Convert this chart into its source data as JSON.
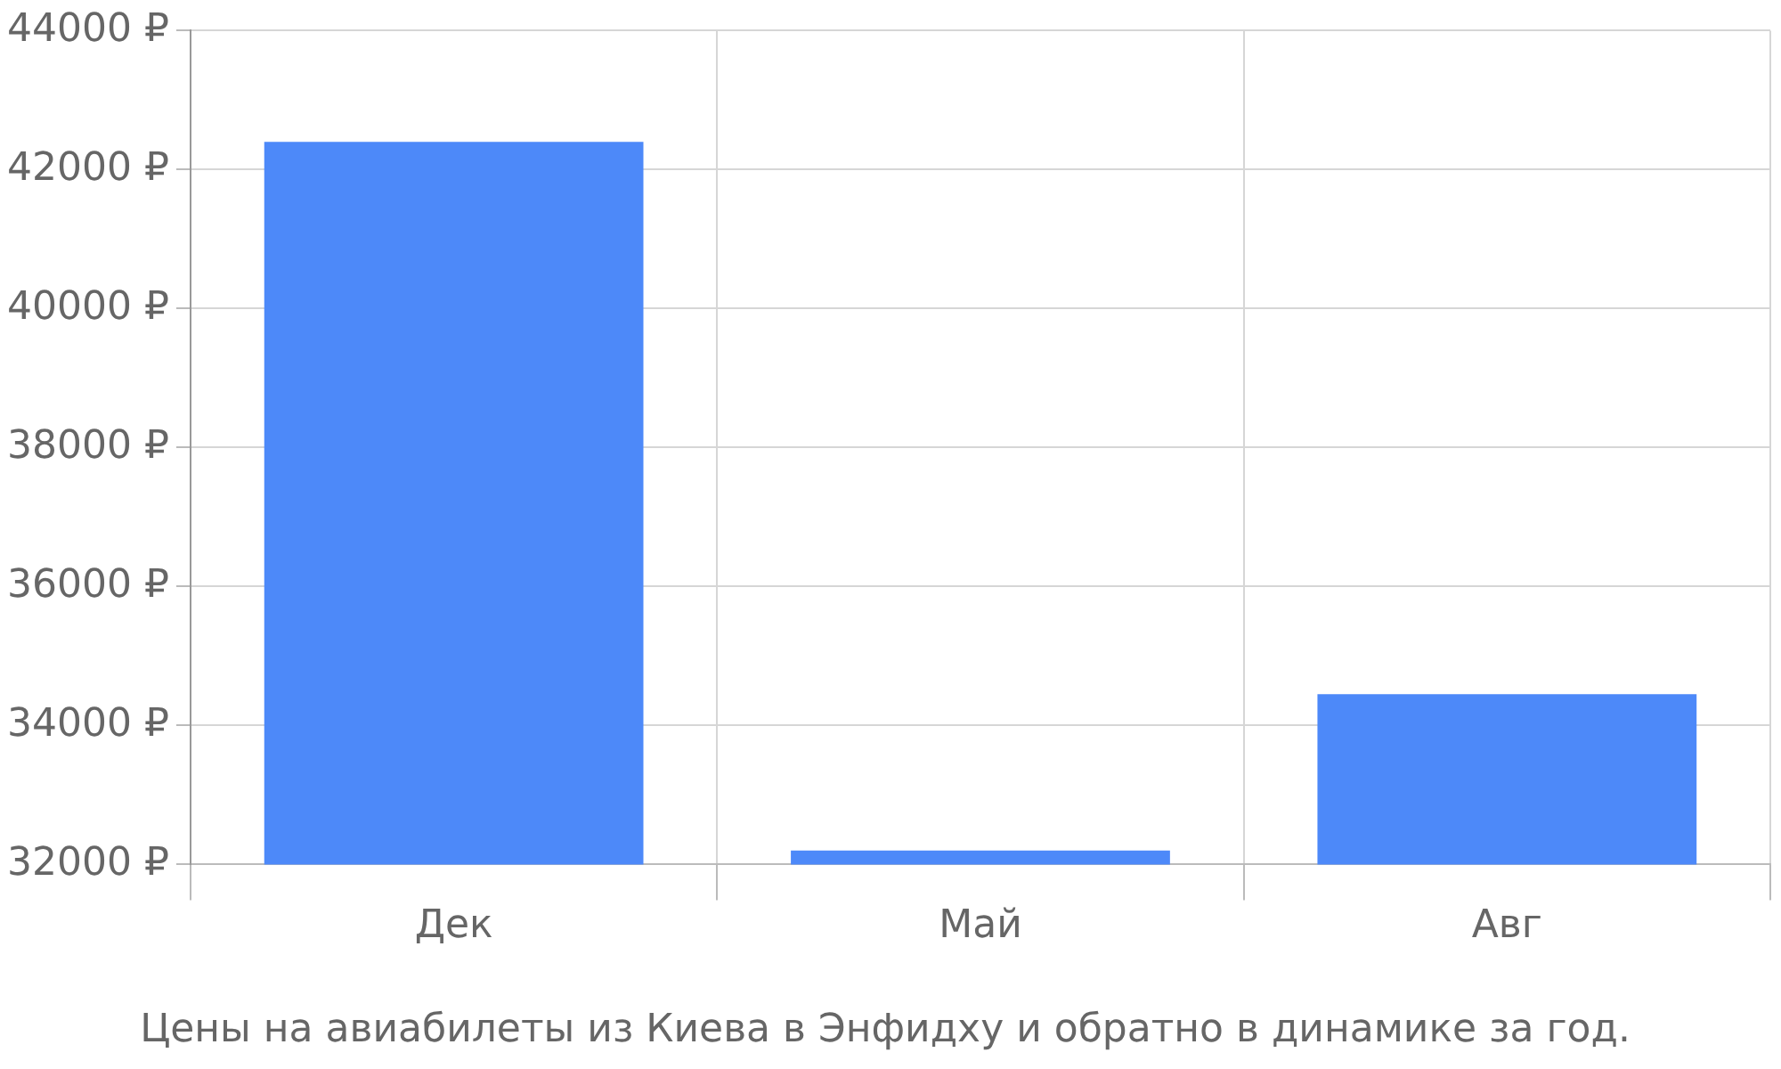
{
  "chart_data": {
    "type": "bar",
    "title": "Цены на авиабилеты из Киева в Энфидху и обратно в динамике за год.",
    "categories": [
      "Дек",
      "Май",
      "Авг"
    ],
    "values": [
      42400,
      32200,
      34450
    ],
    "color": "#4d89f9",
    "ylim": [
      32000,
      44000
    ],
    "yticks": [
      {
        "value": 32000,
        "label": "32000 ₽"
      },
      {
        "value": 34000,
        "label": "34000 ₽"
      },
      {
        "value": 36000,
        "label": "36000 ₽"
      },
      {
        "value": 38000,
        "label": "38000 ₽"
      },
      {
        "value": 40000,
        "label": "40000 ₽"
      },
      {
        "value": 42000,
        "label": "42000 ₽"
      },
      {
        "value": 44000,
        "label": "44000 ₽"
      }
    ],
    "grid": true,
    "legend": false
  }
}
